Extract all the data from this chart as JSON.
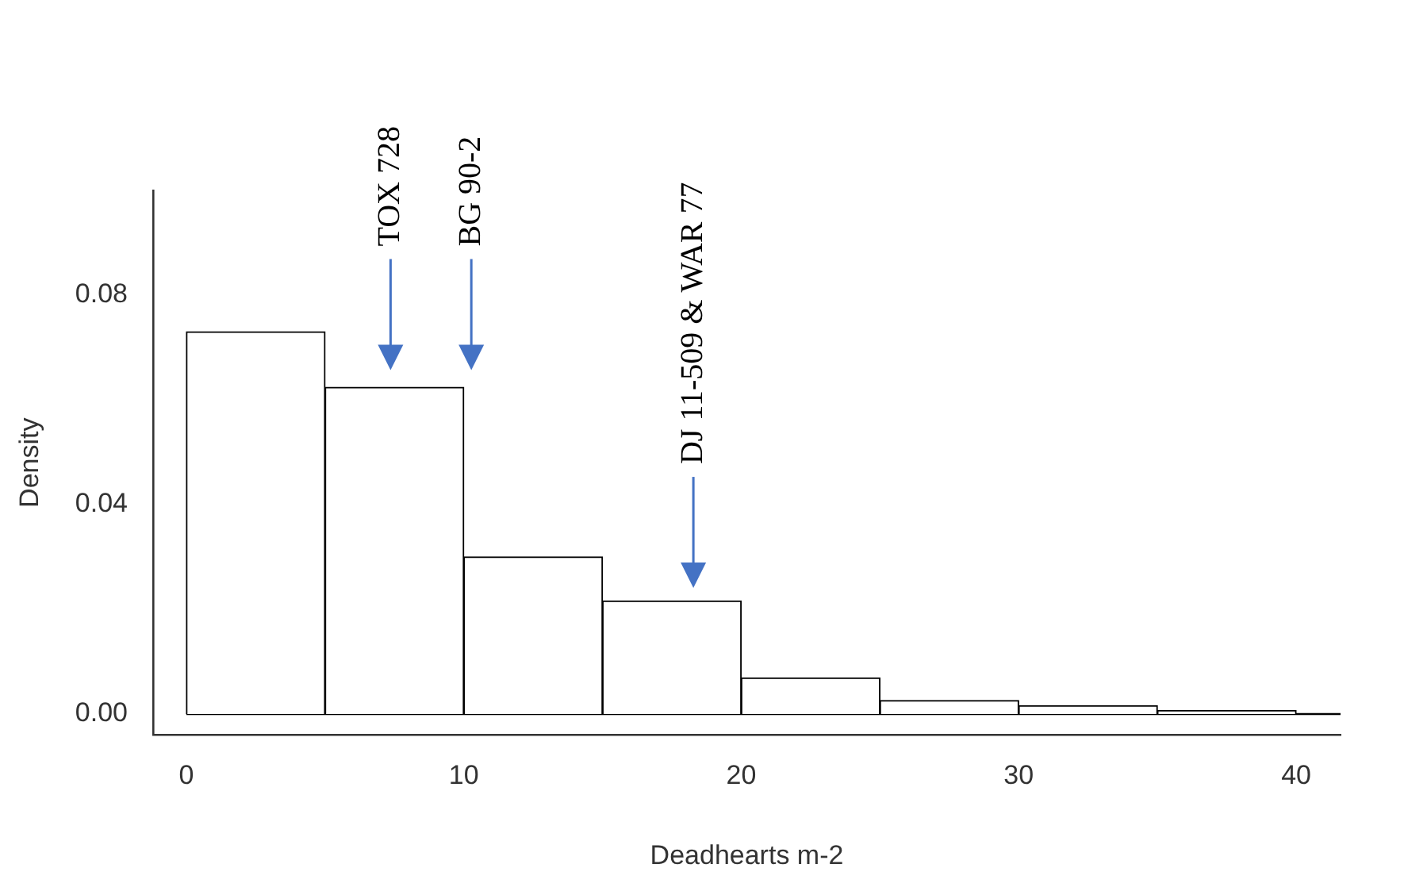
{
  "chart_data": {
    "type": "histogram",
    "xlabel": "Deadhearts m-2",
    "ylabel": "Density",
    "bins": [
      0,
      5,
      10,
      15,
      20,
      25,
      30,
      35,
      40
    ],
    "values": [
      0.073,
      0.0624,
      0.03,
      0.0216,
      0.0069,
      0.0026,
      0.0016,
      0.0007
    ],
    "color": "#ffffff",
    "xlim": [
      -1.2,
      41.6
    ],
    "ylim": [
      -0.004,
      0.1
    ],
    "xticks": [
      0,
      10,
      20,
      30,
      40
    ],
    "yticks": [
      {
        "value": 0,
        "label": "0.00"
      },
      {
        "value": 0.04,
        "label": "0.04"
      },
      {
        "value": 0.08,
        "label": "0.08"
      }
    ],
    "ref_lines": [
      {
        "axis": "y",
        "value": 0,
        "color": "#000000"
      }
    ],
    "annotations": [
      "TOX 728",
      "BG 90-2",
      "DJ 11-509 & WAR 77"
    ],
    "grid": false,
    "legend": false
  }
}
